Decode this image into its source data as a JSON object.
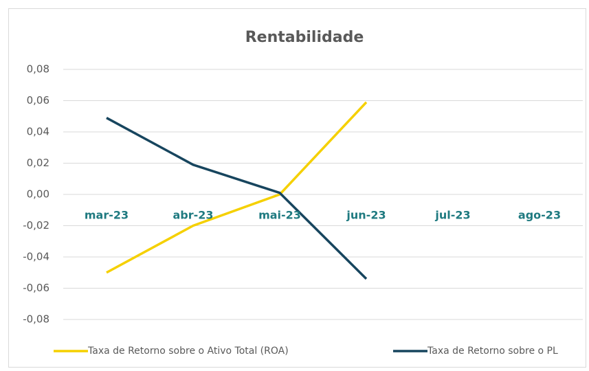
{
  "chart_data": {
    "type": "line",
    "title": "Rentabilidade",
    "categories": [
      "mar-23",
      "abr-23",
      "mai-23",
      "jun-23",
      "jul-23",
      "ago-23"
    ],
    "series": [
      {
        "name": "Taxa de Retorno sobre o Ativo Total (ROA)",
        "color": "#f5d000",
        "values": [
          -0.05,
          -0.02,
          0.0,
          0.059,
          null,
          null
        ]
      },
      {
        "name": "Taxa de Retorno sobre o PL",
        "color": "#17455e",
        "values": [
          0.049,
          0.019,
          0.001,
          -0.054,
          null,
          null
        ]
      }
    ],
    "ylim": [
      -0.08,
      0.08
    ],
    "yticks": [
      {
        "value": -0.08,
        "label": "-0,08"
      },
      {
        "value": -0.06,
        "label": "-0,06"
      },
      {
        "value": -0.04,
        "label": "-0,04"
      },
      {
        "value": -0.02,
        "label": "-0,02"
      },
      {
        "value": 0,
        "label": "0,00"
      },
      {
        "value": 0.02,
        "label": "0,02"
      },
      {
        "value": 0.04,
        "label": "0,04"
      },
      {
        "value": 0.06,
        "label": "0,06"
      },
      {
        "value": 0.08,
        "label": "0,08"
      }
    ],
    "grid": true,
    "legend": "bottom"
  }
}
